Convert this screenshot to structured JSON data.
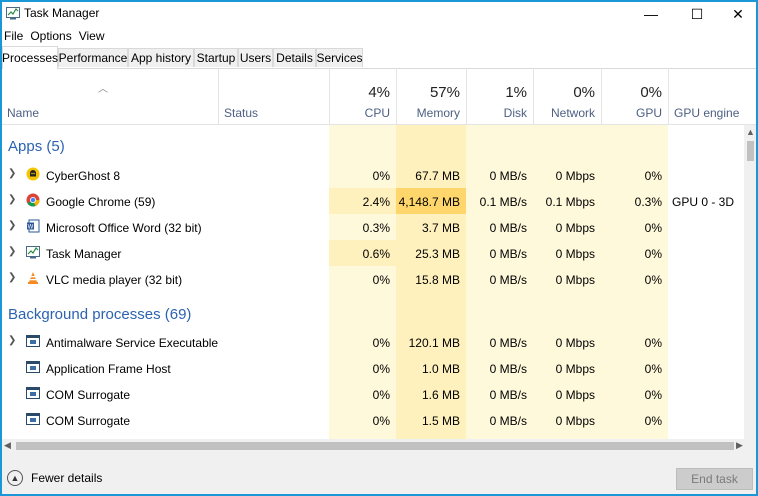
{
  "window": {
    "title": "Task Manager",
    "minimize": "—",
    "maximize": "☐",
    "close": "✕"
  },
  "menu": [
    "File",
    "Options",
    "View"
  ],
  "tabs": [
    "Processes",
    "Performance",
    "App history",
    "Startup",
    "Users",
    "Details",
    "Services"
  ],
  "columns": {
    "name": "Name",
    "status": "Status",
    "cpu": {
      "pct": "4%",
      "label": "CPU"
    },
    "memory": {
      "pct": "57%",
      "label": "Memory"
    },
    "disk": {
      "pct": "1%",
      "label": "Disk"
    },
    "network": {
      "pct": "0%",
      "label": "Network"
    },
    "gpu": {
      "pct": "0%",
      "label": "GPU"
    },
    "gpu_engine": "GPU engine"
  },
  "groups": {
    "apps": "Apps (5)",
    "background": "Background processes (69)"
  },
  "apps": [
    {
      "name": "CyberGhost 8",
      "cpu": "0%",
      "memory": "67.7 MB",
      "disk": "0 MB/s",
      "network": "0 Mbps",
      "gpu": "0%",
      "engine": ""
    },
    {
      "name": "Google Chrome (59)",
      "cpu": "2.4%",
      "memory": "4,148.7 MB",
      "disk": "0.1 MB/s",
      "network": "0.1 Mbps",
      "gpu": "0.3%",
      "engine": "GPU 0 - 3D"
    },
    {
      "name": "Microsoft Office Word (32 bit)",
      "cpu": "0.3%",
      "memory": "3.7 MB",
      "disk": "0 MB/s",
      "network": "0 Mbps",
      "gpu": "0%",
      "engine": ""
    },
    {
      "name": "Task Manager",
      "cpu": "0.6%",
      "memory": "25.3 MB",
      "disk": "0 MB/s",
      "network": "0 Mbps",
      "gpu": "0%",
      "engine": ""
    },
    {
      "name": "VLC media player (32 bit)",
      "cpu": "0%",
      "memory": "15.8 MB",
      "disk": "0 MB/s",
      "network": "0 Mbps",
      "gpu": "0%",
      "engine": ""
    }
  ],
  "background": [
    {
      "name": "Antimalware Service Executable",
      "cpu": "0%",
      "memory": "120.1 MB",
      "disk": "0 MB/s",
      "network": "0 Mbps",
      "gpu": "0%",
      "engine": ""
    },
    {
      "name": "Application Frame Host",
      "cpu": "0%",
      "memory": "1.0 MB",
      "disk": "0 MB/s",
      "network": "0 Mbps",
      "gpu": "0%",
      "engine": ""
    },
    {
      "name": "COM Surrogate",
      "cpu": "0%",
      "memory": "1.6 MB",
      "disk": "0 MB/s",
      "network": "0 Mbps",
      "gpu": "0%",
      "engine": ""
    },
    {
      "name": "COM Surrogate",
      "cpu": "0%",
      "memory": "1.5 MB",
      "disk": "0 MB/s",
      "network": "0 Mbps",
      "gpu": "0%",
      "engine": ""
    }
  ],
  "footer": {
    "fewer_details": "Fewer details",
    "end_task": "End task"
  },
  "colors": {
    "accent": "#1a97d6",
    "cpu_bg": "#fff9dc",
    "mem_bg": "#fff1bd",
    "mem_hot": "#ffd66b",
    "group_title": "#2c63b0"
  }
}
